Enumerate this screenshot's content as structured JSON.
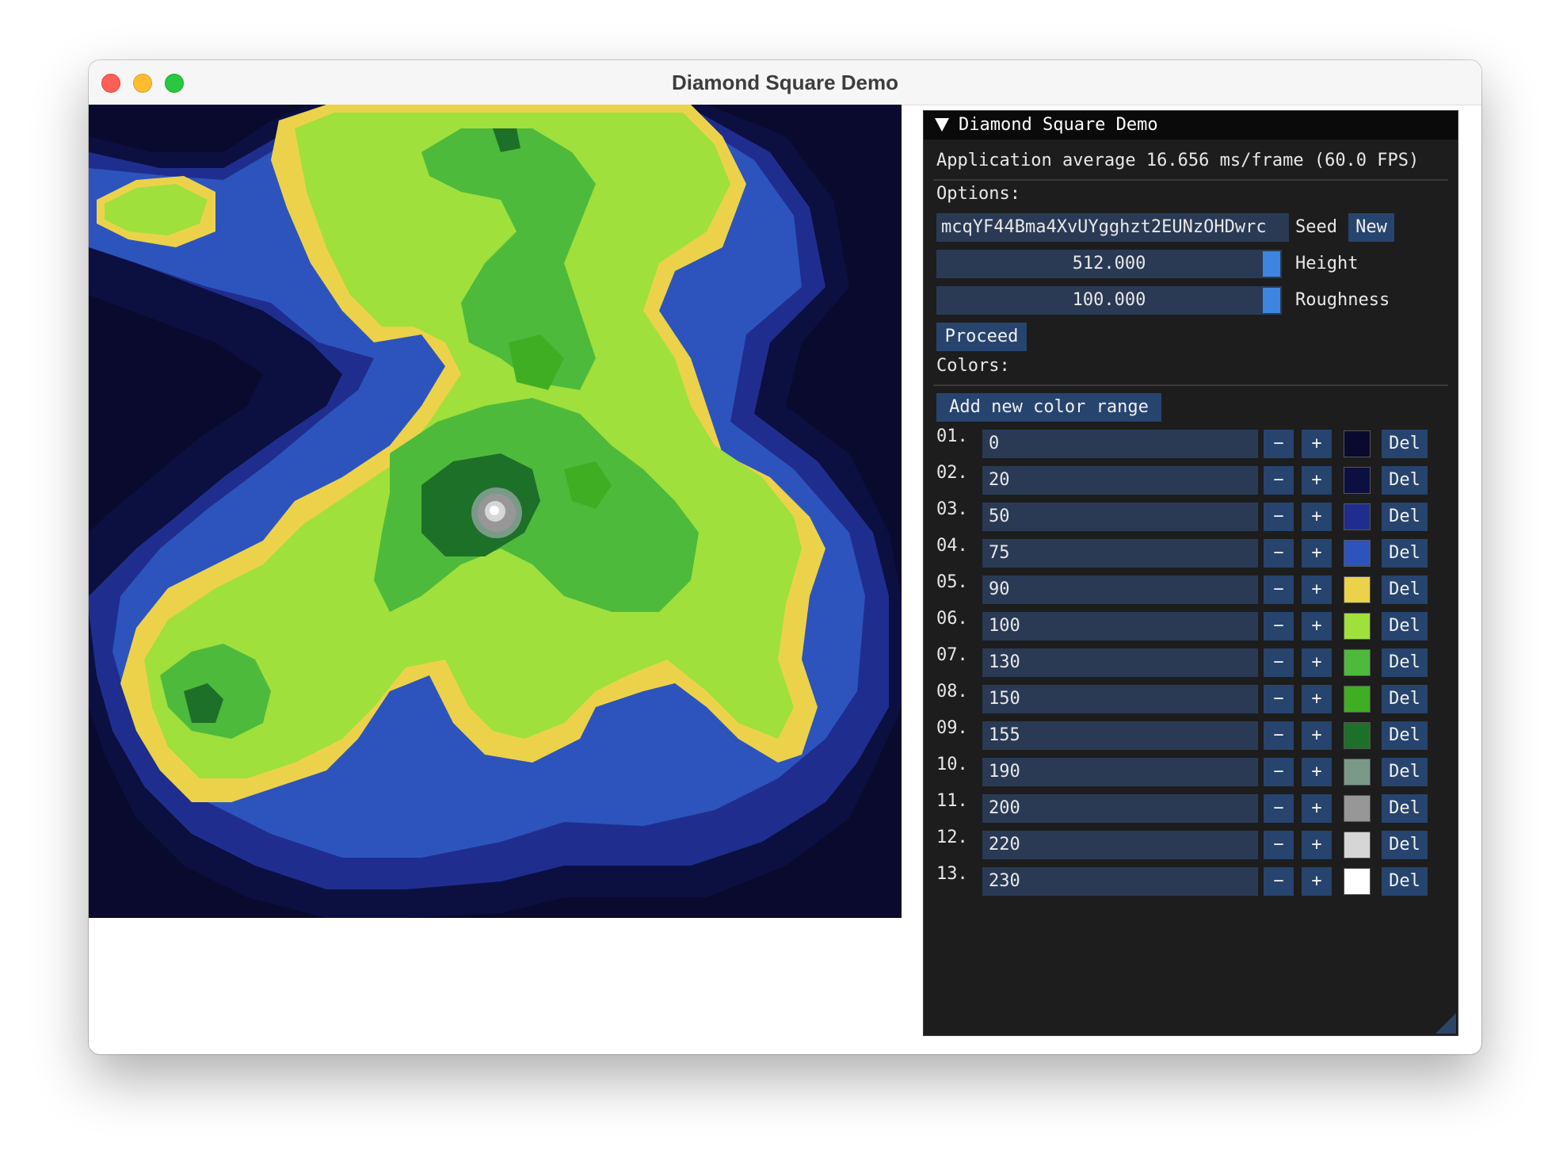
{
  "window": {
    "title": "Diamond Square Demo"
  },
  "panel": {
    "header": "Diamond Square Demo",
    "fps_text": "Application average 16.656 ms/frame (60.0 FPS)",
    "options_label": "Options:",
    "seed": {
      "value": "mcqYF44Bma4XvUYgghzt2EUNzOHDwrc",
      "label": "Seed",
      "new_button": "New"
    },
    "height": {
      "value": "512.000",
      "label": "Height"
    },
    "roughness": {
      "value": "100.000",
      "label": "Roughness"
    },
    "proceed_button": "Proceed",
    "colors_label": "Colors:",
    "add_button": "Add new color range",
    "minus_label": "−",
    "plus_label": "+",
    "del_label": "Del",
    "ranges": [
      {
        "index": "01.",
        "value": "0",
        "color": "#0a0a2e"
      },
      {
        "index": "02.",
        "value": "20",
        "color": "#0b1040"
      },
      {
        "index": "03.",
        "value": "50",
        "color": "#1f2e8e"
      },
      {
        "index": "04.",
        "value": "75",
        "color": "#2d54bd"
      },
      {
        "index": "05.",
        "value": "90",
        "color": "#ecd24a"
      },
      {
        "index": "06.",
        "value": "100",
        "color": "#9fe03c"
      },
      {
        "index": "07.",
        "value": "130",
        "color": "#4dba3b"
      },
      {
        "index": "08.",
        "value": "150",
        "color": "#3fae23"
      },
      {
        "index": "09.",
        "value": "155",
        "color": "#1d7028"
      },
      {
        "index": "10.",
        "value": "190",
        "color": "#7a9a88"
      },
      {
        "index": "11.",
        "value": "200",
        "color": "#979797"
      },
      {
        "index": "12.",
        "value": "220",
        "color": "#d6d6d6"
      },
      {
        "index": "13.",
        "value": "230",
        "color": "#ffffff"
      }
    ]
  }
}
